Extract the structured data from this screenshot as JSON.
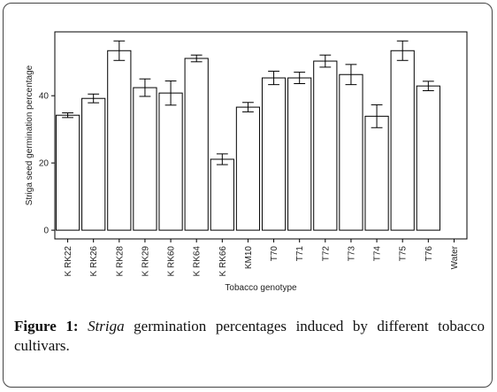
{
  "chart_data": {
    "type": "bar",
    "xlabel": "Tobacco genotype",
    "ylabel": "Striga seed germination percentage",
    "categories": [
      "K RK22",
      "K RK26",
      "K RK28",
      "K RK29",
      "K RK60",
      "K RK64",
      "K RK66",
      "KM10",
      "T70",
      "T71",
      "T72",
      "T73",
      "T74",
      "T75",
      "T76",
      "Water"
    ],
    "values": [
      34.2,
      39.2,
      53.4,
      42.4,
      40.8,
      51.1,
      21.1,
      36.6,
      45.3,
      45.3,
      50.3,
      46.3,
      33.9,
      53.4,
      42.9,
      0
    ],
    "errors": [
      0.7,
      1.3,
      2.9,
      2.6,
      3.6,
      1.0,
      1.6,
      1.4,
      2.0,
      1.7,
      1.8,
      3.0,
      3.4,
      2.9,
      1.4,
      null
    ],
    "color": "#ffffff",
    "ylim": [
      -2.6,
      59
    ],
    "yticks": [
      0,
      20,
      40
    ],
    "grid": false
  },
  "caption": {
    "label": "Figure 1:",
    "italic": "Striga",
    "text": "germination percentages induced by different tobacco cultivars."
  }
}
